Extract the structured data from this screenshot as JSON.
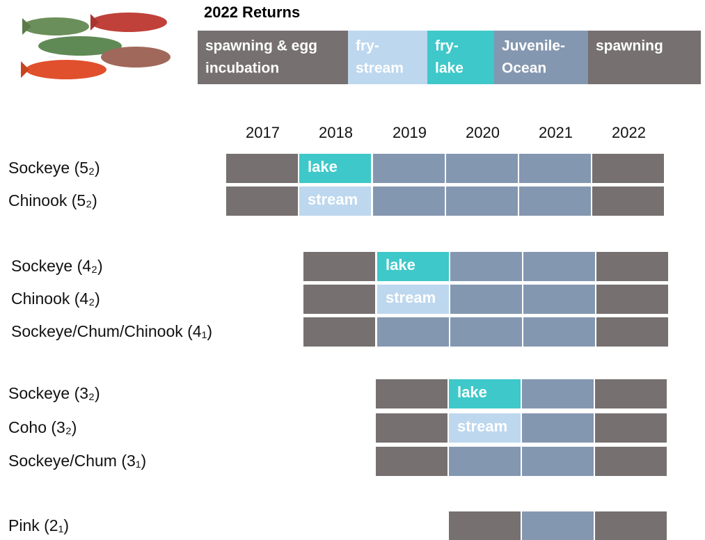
{
  "title": "2022 Returns",
  "legend": [
    {
      "lines": [
        "spawning & egg",
        "incubation"
      ],
      "color": "#767070"
    },
    {
      "lines": [
        "fry-",
        "stream"
      ],
      "color": "#bdd7ee"
    },
    {
      "lines": [
        "fry-",
        "lake"
      ],
      "color": "#3ec8c9"
    },
    {
      "lines": [
        "Juvenile-",
        "Ocean"
      ],
      "color": "#8497b0"
    },
    {
      "lines": [
        "spawning"
      ],
      "color": "#767070"
    }
  ],
  "years": [
    "2017",
    "2018",
    "2019",
    "2020",
    "2021",
    "2022"
  ],
  "groups": [
    {
      "rows": [
        {
          "label": "Sockeye (5₂)",
          "cells": [
            {
              "color": "#767070"
            },
            {
              "color": "#3ec8c9",
              "text": "lake"
            },
            {
              "color": "#8497b0"
            },
            {
              "color": "#8497b0"
            },
            {
              "color": "#8497b0"
            },
            {
              "color": "#767070"
            }
          ]
        },
        {
          "label": "Chinook (5₂)",
          "cells": [
            {
              "color": "#767070"
            },
            {
              "color": "#bdd7ee",
              "text": "stream"
            },
            {
              "color": "#8497b0"
            },
            {
              "color": "#8497b0"
            },
            {
              "color": "#8497b0"
            },
            {
              "color": "#767070"
            }
          ]
        }
      ]
    },
    {
      "rows": [
        {
          "label": "Sockeye (4₂)",
          "cells": [
            null,
            {
              "color": "#767070"
            },
            {
              "color": "#3ec8c9",
              "text": "lake"
            },
            {
              "color": "#8497b0"
            },
            {
              "color": "#8497b0"
            },
            {
              "color": "#767070"
            }
          ]
        },
        {
          "label": "Chinook (4₂)",
          "cells": [
            null,
            {
              "color": "#767070"
            },
            {
              "color": "#bdd7ee",
              "text": "stream"
            },
            {
              "color": "#8497b0"
            },
            {
              "color": "#8497b0"
            },
            {
              "color": "#767070"
            }
          ]
        },
        {
          "label": "Sockeye/Chum/Chinook (4₁)",
          "cells": [
            null,
            {
              "color": "#767070"
            },
            {
              "color": "#8497b0"
            },
            {
              "color": "#8497b0"
            },
            {
              "color": "#8497b0"
            },
            {
              "color": "#767070"
            }
          ]
        }
      ]
    },
    {
      "rows": [
        {
          "label": "Sockeye (3₂)",
          "cells": [
            null,
            null,
            {
              "color": "#767070"
            },
            {
              "color": "#3ec8c9",
              "text": "lake"
            },
            {
              "color": "#8497b0"
            },
            {
              "color": "#767070"
            }
          ]
        },
        {
          "label": "Coho (3₂)",
          "cells": [
            null,
            null,
            {
              "color": "#767070"
            },
            {
              "color": "#bdd7ee",
              "text": "stream"
            },
            {
              "color": "#8497b0"
            },
            {
              "color": "#767070"
            }
          ]
        },
        {
          "label": "Sockeye/Chum (3₁)",
          "cells": [
            null,
            null,
            {
              "color": "#767070"
            },
            {
              "color": "#8497b0"
            },
            {
              "color": "#8497b0"
            },
            {
              "color": "#767070"
            }
          ]
        }
      ]
    },
    {
      "rows": [
        {
          "label": "Pink (2₁)",
          "cells": [
            null,
            null,
            null,
            {
              "color": "#767070"
            },
            {
              "color": "#8497b0"
            },
            {
              "color": "#767070"
            }
          ]
        }
      ]
    }
  ]
}
